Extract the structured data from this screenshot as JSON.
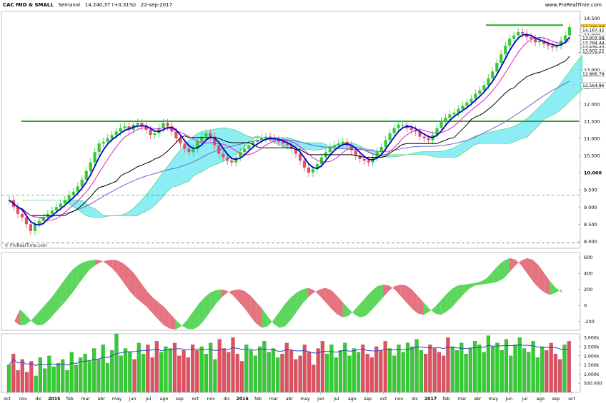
{
  "header": {
    "title": "CAC MID & SMALL",
    "period": "Semanal",
    "last_value": "14.240,37 (+0,31%)",
    "date": "22-sep-2017",
    "brand": "www.ProRealTime.com"
  },
  "watermark": "© ProRealTime.com",
  "colors": {
    "up": "#33cc33",
    "down": "#e05060",
    "ma_fast": "#0000cc",
    "ma_mid": "#e020c0",
    "ma_slow": "#000000",
    "ma_long": "#6666cc",
    "cloud_bull": "#66e8f0",
    "cloud_bear": "#f0a0b0",
    "level_line": "#22aa22"
  },
  "chart_data": [
    {
      "type": "candlestick",
      "panel": "price",
      "y_ticks": [
        "14.500",
        "14.000",
        "13.500",
        "13.000",
        "12.500",
        "12.000",
        "11.500",
        "11.000",
        "10.500",
        "10.000",
        "9.500",
        "9.000",
        "8.500",
        "8.000"
      ],
      "ylim": [
        7.8,
        14.7
      ],
      "horizontal_levels": [
        11.5,
        14.3
      ],
      "dashed_levels": [
        9.35,
        7.95
      ],
      "price_labels": [
        {
          "text": "14.240,37",
          "value": 14.24,
          "color": "#ffcc00"
        },
        {
          "text": "14.167,42",
          "value": 14.16,
          "color": "#ffffff"
        },
        {
          "text": "13.903,98",
          "value": 13.93,
          "color": "#ffffff"
        },
        {
          "text": "13.784,44",
          "value": 13.79,
          "color": "#ffffff"
        },
        {
          "text": "13.639,43",
          "value": 13.66,
          "color": "#ffffff"
        },
        {
          "text": "13.602,22",
          "value": 13.56,
          "color": "#ffffff"
        },
        {
          "text": "12.866,79",
          "value": 12.88,
          "color": "#ffffff"
        },
        {
          "text": "12.564,86",
          "value": 12.55,
          "color": "#ffffff"
        }
      ],
      "close": [
        9.2,
        9.0,
        8.8,
        8.7,
        8.5,
        8.3,
        8.5,
        8.6,
        8.7,
        8.8,
        8.9,
        9.0,
        9.1,
        9.2,
        9.35,
        9.45,
        9.6,
        9.8,
        10.05,
        10.3,
        10.6,
        10.85,
        10.9,
        11.0,
        11.1,
        11.2,
        11.3,
        11.35,
        11.25,
        11.4,
        11.45,
        11.35,
        11.25,
        11.1,
        11.15,
        11.3,
        11.45,
        11.35,
        11.2,
        11.0,
        10.85,
        10.7,
        10.6,
        10.7,
        10.9,
        11.05,
        11.15,
        11.05,
        10.8,
        10.55,
        10.45,
        10.35,
        10.3,
        10.45,
        10.6,
        10.7,
        10.8,
        10.9,
        10.95,
        11.0,
        11.05,
        11.0,
        10.95,
        10.9,
        10.85,
        10.8,
        10.7,
        10.55,
        10.35,
        10.15,
        10.0,
        10.1,
        10.25,
        10.45,
        10.6,
        10.75,
        10.8,
        10.85,
        10.9,
        10.8,
        10.65,
        10.5,
        10.4,
        10.35,
        10.3,
        10.45,
        10.6,
        10.75,
        10.95,
        11.15,
        11.3,
        11.4,
        11.4,
        11.3,
        11.25,
        11.2,
        11.05,
        11.0,
        10.95,
        11.1,
        11.3,
        11.5,
        11.6,
        11.7,
        11.75,
        11.85,
        11.95,
        12.05,
        12.15,
        12.3,
        12.4,
        12.55,
        12.75,
        12.95,
        13.2,
        13.45,
        13.7,
        13.9,
        14.0,
        14.1,
        14.05,
        13.95,
        13.9,
        13.8,
        13.85,
        13.75,
        13.7,
        13.65,
        13.7,
        13.85,
        14.0,
        14.24
      ],
      "x_labels": [
        "oct",
        "nov",
        "dic",
        "2015",
        "feb",
        "mar",
        "abr",
        "may",
        "jun",
        "jul",
        "ago",
        "sep",
        "oct",
        "nov",
        "dic",
        "2016",
        "feb",
        "mar",
        "abr",
        "may",
        "jun",
        "jul",
        "ago",
        "sep",
        "oct",
        "nov",
        "dic",
        "2017",
        "feb",
        "mar",
        "abr",
        "may",
        "jun",
        "jul",
        "ago",
        "sep",
        "oct"
      ]
    },
    {
      "type": "area",
      "panel": "oscillator",
      "y_ticks": [
        "600",
        "400",
        "200",
        "0",
        "-200"
      ],
      "ylim": [
        -310,
        660
      ],
      "values": [
        -50,
        -120,
        -200,
        -250,
        -240,
        -180,
        -100,
        -20,
        60,
        150,
        250,
        350,
        440,
        500,
        540,
        560,
        570,
        560,
        520,
        460,
        380,
        280,
        180,
        100,
        40,
        -20,
        -100,
        -180,
        -250,
        -290,
        -300,
        -260,
        -180,
        -80,
        20,
        100,
        160,
        190,
        200,
        180,
        120,
        40,
        -40,
        -140,
        -230,
        -280,
        -260,
        -180,
        -80,
        20,
        100,
        160,
        200,
        220,
        190,
        120,
        40,
        -40,
        -110,
        -150,
        -130,
        -60,
        20,
        100,
        180,
        240,
        260,
        250,
        200,
        120,
        40,
        -40,
        -100,
        -120,
        -80,
        -20,
        60,
        140,
        210,
        250,
        260,
        270,
        280,
        300,
        340,
        420,
        500,
        560,
        590,
        570,
        500,
        400,
        300,
        220,
        160,
        130,
        160,
        200
      ]
    },
    {
      "type": "bar",
      "panel": "volume",
      "y_ticks": [
        "3.000k",
        "2.500k",
        "2.000k",
        "1.500k",
        "1.000k",
        "500.000"
      ],
      "ylim": [
        0,
        3200
      ],
      "values": [
        1500,
        2100,
        1200,
        1800,
        1100,
        1700,
        900,
        1900,
        1300,
        2000,
        1400,
        1600,
        1800,
        1200,
        2200,
        1500,
        1900,
        2100,
        1700,
        2400,
        1800,
        2600,
        1600,
        2300,
        3200,
        2000,
        2400,
        2200,
        1800,
        2700,
        2100,
        2600,
        1900,
        2800,
        2200,
        2500,
        2400,
        2700,
        2000,
        2300,
        1900,
        2600,
        2300,
        2500,
        2100,
        2700,
        1800,
        2900,
        2400,
        2200,
        3000,
        2100,
        1700,
        2600,
        2300,
        2000,
        2500,
        2800,
        2200,
        2400,
        1900,
        2100,
        2700,
        2300,
        1800,
        2000,
        2600,
        2200,
        1500,
        2400,
        2800,
        2100,
        2600,
        1900,
        2300,
        2700,
        2000,
        2400,
        2200,
        2600,
        2100,
        1900,
        2500,
        2300,
        2800,
        2400,
        2000,
        2600,
        2200,
        2700,
        2500,
        2900,
        2300,
        2100,
        2600,
        2400,
        2200,
        2000,
        3000,
        2500,
        2300,
        2700,
        2100,
        2400,
        2800,
        2600,
        2200,
        3100,
        2500,
        2700,
        2300,
        2900,
        2000,
        2600,
        3000,
        2400,
        2200,
        2800,
        1900,
        2500,
        2300,
        2700,
        2100,
        1800,
        2600,
        2800
      ]
    }
  ]
}
